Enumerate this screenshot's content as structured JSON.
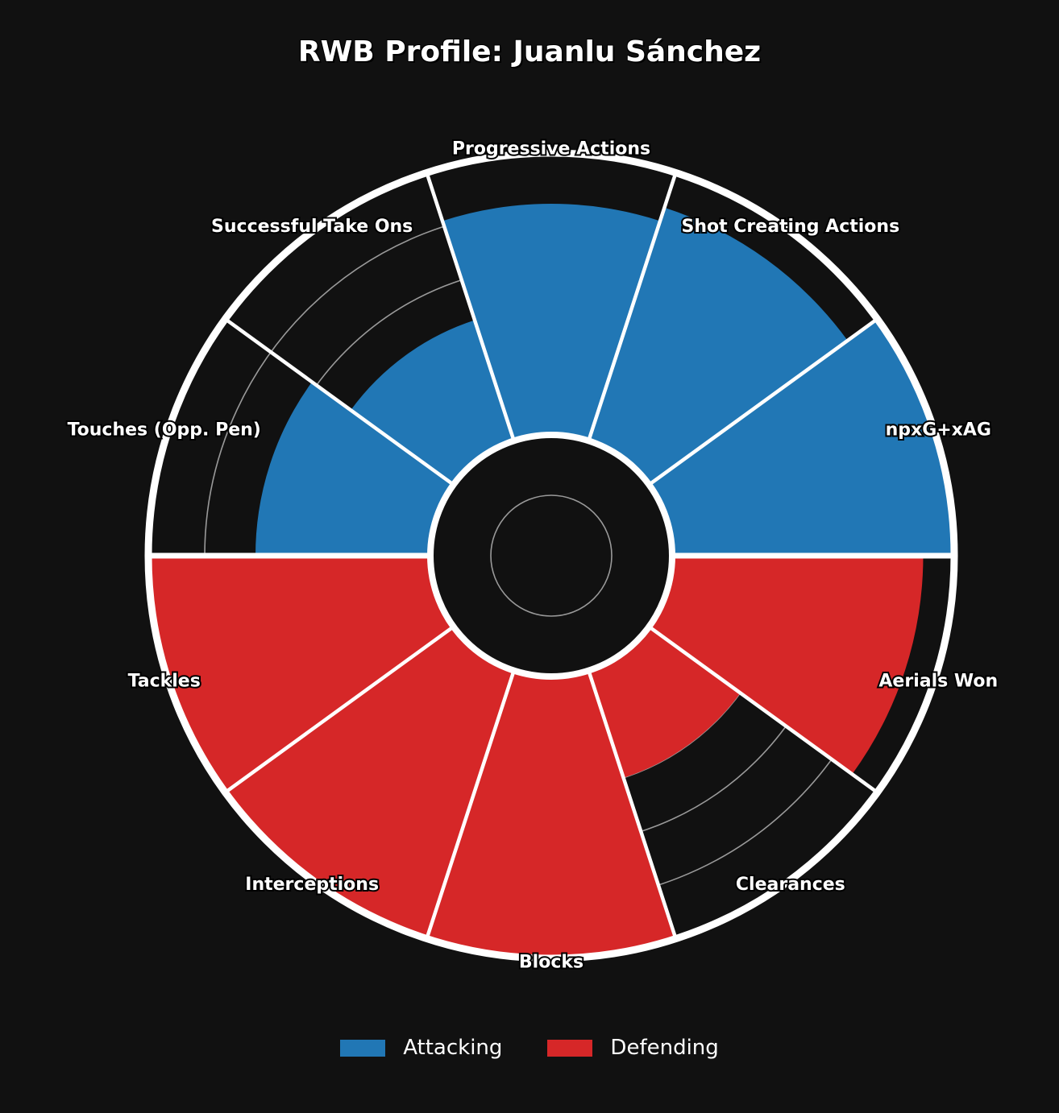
{
  "chart_data": {
    "type": "polar-bar",
    "title": "RWB Profile: Juanlu Sánchez",
    "categories": [
      "npxG+xAG",
      "Shot Creating Actions",
      "Progressive Actions",
      "Successful Take Ons",
      "Touches (Opp. Pen)",
      "Tackles",
      "Interceptions",
      "Blocks",
      "Clearances",
      "Aerials Won"
    ],
    "values": [
      100,
      87,
      82,
      45,
      62,
      100,
      100,
      100,
      40,
      89
    ],
    "groups": [
      "Attacking",
      "Attacking",
      "Attacking",
      "Attacking",
      "Attacking",
      "Defending",
      "Defending",
      "Defending",
      "Defending",
      "Defending"
    ],
    "rlim": [
      0,
      100
    ],
    "grid": true,
    "legend": {
      "position": "bottom",
      "entries": [
        {
          "name": "Attacking",
          "color": "#2177b5"
        },
        {
          "name": "Defending",
          "color": "#d62728"
        }
      ]
    },
    "colors": {
      "background": "#111111",
      "attacking": "#2177b5",
      "defending": "#d62728",
      "border": "#ffffff",
      "grid": "#9a9a9a"
    }
  }
}
